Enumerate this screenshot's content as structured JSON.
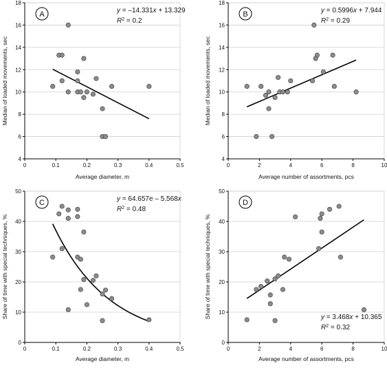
{
  "figure": {
    "colors": {
      "point_fill": "#8c8c8c",
      "point_stroke": "#444444",
      "line": "#000000",
      "grid": "#cfcfcf",
      "axis": "#000000"
    }
  },
  "chart_data": [
    {
      "panel": "A",
      "type": "scatter",
      "xlabel": "Average diameter, m",
      "ylabel": "Median of loaded movements, sec",
      "xlim": [
        0,
        0.5
      ],
      "ylim": [
        4,
        18
      ],
      "xticks": [
        0,
        0.1,
        0.2,
        0.3,
        0.4,
        0.5
      ],
      "xtick_labels": [
        "0",
        "0.1",
        "0.2",
        "0.3",
        "0.4",
        "0.5"
      ],
      "yticks": [
        4,
        6,
        8,
        10,
        12,
        14,
        16,
        18
      ],
      "ytick_labels": [
        "4",
        "6",
        "8",
        "10",
        "12",
        "14",
        "16",
        "18"
      ],
      "grid": "horizontal",
      "equation_lines": [
        "y = –14.331x + 13.329",
        "R² = 0.2"
      ],
      "points": [
        {
          "x": 0.09,
          "y": 10.5
        },
        {
          "x": 0.11,
          "y": 13.3
        },
        {
          "x": 0.12,
          "y": 13.3
        },
        {
          "x": 0.12,
          "y": 11
        },
        {
          "x": 0.14,
          "y": 16
        },
        {
          "x": 0.14,
          "y": 10
        },
        {
          "x": 0.17,
          "y": 11.8
        },
        {
          "x": 0.17,
          "y": 10
        },
        {
          "x": 0.17,
          "y": 11
        },
        {
          "x": 0.18,
          "y": 10
        },
        {
          "x": 0.19,
          "y": 13
        },
        {
          "x": 0.19,
          "y": 9.5
        },
        {
          "x": 0.2,
          "y": 10
        },
        {
          "x": 0.22,
          "y": 9.8
        },
        {
          "x": 0.23,
          "y": 11.2
        },
        {
          "x": 0.25,
          "y": 8.5
        },
        {
          "x": 0.25,
          "y": 6
        },
        {
          "x": 0.26,
          "y": 6
        },
        {
          "x": 0.28,
          "y": 10.5
        },
        {
          "x": 0.4,
          "y": 10.5
        }
      ],
      "fit": {
        "kind": "linear",
        "a": -14.331,
        "b": 13.329,
        "x_range": [
          0.09,
          0.4
        ]
      }
    },
    {
      "panel": "B",
      "type": "scatter",
      "xlabel": "Average number of assortments, pcs",
      "ylabel": "Median of loaded movements, sec",
      "xlim": [
        0,
        10
      ],
      "ylim": [
        4,
        18
      ],
      "xticks": [
        0,
        2,
        4,
        6,
        8,
        10
      ],
      "xtick_labels": [
        "0",
        "2",
        "4",
        "6",
        "8",
        "10"
      ],
      "yticks": [
        4,
        6,
        8,
        10,
        12,
        14,
        16,
        18
      ],
      "ytick_labels": [
        "4",
        "6",
        "8",
        "10",
        "12",
        "14",
        "16",
        "18"
      ],
      "grid": "horizontal",
      "equation_lines": [
        "y = 0.5996x + 7.944",
        "R² = 0.29"
      ],
      "points": [
        {
          "x": 1.2,
          "y": 10.5
        },
        {
          "x": 1.8,
          "y": 6
        },
        {
          "x": 2.1,
          "y": 10.5
        },
        {
          "x": 2.4,
          "y": 9.7
        },
        {
          "x": 2.6,
          "y": 8.5
        },
        {
          "x": 2.6,
          "y": 10
        },
        {
          "x": 2.8,
          "y": 6
        },
        {
          "x": 3.0,
          "y": 9.5
        },
        {
          "x": 3.2,
          "y": 11.3
        },
        {
          "x": 3.3,
          "y": 10
        },
        {
          "x": 3.5,
          "y": 10
        },
        {
          "x": 3.8,
          "y": 10
        },
        {
          "x": 4.0,
          "y": 11
        },
        {
          "x": 5.4,
          "y": 11
        },
        {
          "x": 5.5,
          "y": 16
        },
        {
          "x": 5.6,
          "y": 13
        },
        {
          "x": 5.7,
          "y": 13.3
        },
        {
          "x": 6.1,
          "y": 11.8
        },
        {
          "x": 6.7,
          "y": 13.3
        },
        {
          "x": 6.8,
          "y": 10.5
        },
        {
          "x": 8.2,
          "y": 10
        }
      ],
      "fit": {
        "kind": "linear",
        "a": 0.5996,
        "b": 7.944,
        "x_range": [
          1.2,
          8.2
        ]
      }
    },
    {
      "panel": "C",
      "type": "scatter",
      "xlabel": "Average diameter, m",
      "ylabel": "Share of time with special techniques, %",
      "xlim": [
        0,
        0.5
      ],
      "ylim": [
        0,
        50
      ],
      "xticks": [
        0,
        0.1,
        0.2,
        0.3,
        0.4,
        0.5
      ],
      "xtick_labels": [
        "0",
        "0.1",
        "0.2",
        "0.3",
        "0.4",
        "0.5"
      ],
      "yticks": [
        0,
        10,
        20,
        30,
        40,
        50
      ],
      "ytick_labels": [
        "0",
        "10",
        "20",
        "30",
        "40",
        "50"
      ],
      "grid": "horizontal",
      "equation_lines": [
        "y = 64.657e – 5.568x",
        "R² = 0.48"
      ],
      "points": [
        {
          "x": 0.09,
          "y": 28.2
        },
        {
          "x": 0.11,
          "y": 42.5
        },
        {
          "x": 0.12,
          "y": 45
        },
        {
          "x": 0.12,
          "y": 31
        },
        {
          "x": 0.14,
          "y": 43.8
        },
        {
          "x": 0.14,
          "y": 41
        },
        {
          "x": 0.14,
          "y": 10.8
        },
        {
          "x": 0.17,
          "y": 44
        },
        {
          "x": 0.17,
          "y": 41.6
        },
        {
          "x": 0.17,
          "y": 28.2
        },
        {
          "x": 0.18,
          "y": 27.5
        },
        {
          "x": 0.18,
          "y": 17.5
        },
        {
          "x": 0.19,
          "y": 36.5
        },
        {
          "x": 0.19,
          "y": 20.8
        },
        {
          "x": 0.2,
          "y": 12.5
        },
        {
          "x": 0.22,
          "y": 20.5
        },
        {
          "x": 0.23,
          "y": 22
        },
        {
          "x": 0.25,
          "y": 16
        },
        {
          "x": 0.25,
          "y": 7.2
        },
        {
          "x": 0.26,
          "y": 17.3
        },
        {
          "x": 0.28,
          "y": 14.5
        },
        {
          "x": 0.4,
          "y": 7.5
        }
      ],
      "fit": {
        "kind": "exponential",
        "a": 64.657,
        "k": -5.568,
        "x_range": [
          0.09,
          0.4
        ]
      }
    },
    {
      "panel": "D",
      "type": "scatter",
      "xlabel": "Average number of assortments, pcs",
      "ylabel": "Share of time with special techniques, %",
      "xlim": [
        0,
        10
      ],
      "ylim": [
        0,
        50
      ],
      "xticks": [
        0,
        2,
        4,
        6,
        8,
        10
      ],
      "xtick_labels": [
        "0",
        "2",
        "4",
        "6",
        "8",
        "10"
      ],
      "yticks": [
        0,
        10,
        20,
        30,
        40,
        50
      ],
      "ytick_labels": [
        "0",
        "10",
        "20",
        "30",
        "40",
        "50"
      ],
      "grid": "horizontal",
      "equation_lines": [
        "y = 3.468x + 10.365",
        "R² = 0.32"
      ],
      "points": [
        {
          "x": 1.2,
          "y": 7.5
        },
        {
          "x": 1.8,
          "y": 17.5
        },
        {
          "x": 2.1,
          "y": 18.5
        },
        {
          "x": 2.5,
          "y": 20.3
        },
        {
          "x": 2.7,
          "y": 15.7
        },
        {
          "x": 2.7,
          "y": 12.8
        },
        {
          "x": 3.0,
          "y": 7.2
        },
        {
          "x": 3.0,
          "y": 21
        },
        {
          "x": 3.2,
          "y": 22
        },
        {
          "x": 3.5,
          "y": 17.5
        },
        {
          "x": 3.6,
          "y": 28.2
        },
        {
          "x": 3.9,
          "y": 27.5
        },
        {
          "x": 4.3,
          "y": 41.5
        },
        {
          "x": 5.8,
          "y": 31
        },
        {
          "x": 5.9,
          "y": 41
        },
        {
          "x": 6.0,
          "y": 36.5
        },
        {
          "x": 6.0,
          "y": 42.5
        },
        {
          "x": 6.5,
          "y": 44
        },
        {
          "x": 7.1,
          "y": 45
        },
        {
          "x": 7.2,
          "y": 28.2
        },
        {
          "x": 8.7,
          "y": 10.8
        }
      ],
      "fit": {
        "kind": "linear",
        "a": 3.468,
        "b": 10.365,
        "x_range": [
          1.2,
          8.7
        ]
      }
    }
  ]
}
